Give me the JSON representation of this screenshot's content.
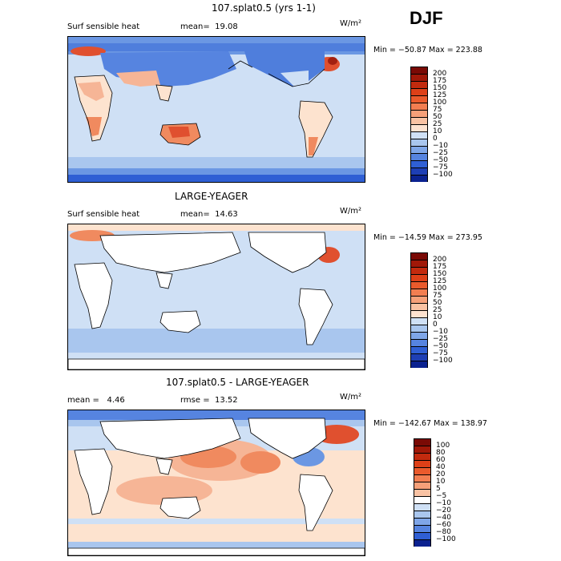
{
  "season": "DJF",
  "colors": {
    "land_white": "#ffffff",
    "light_blue": "#cfe0f5",
    "mid_blue": "#a9c6ee",
    "blue": "#6b97e3",
    "deep_blue": "#2f5fd4",
    "peach": "#fde3cf",
    "salmon": "#f6b596",
    "orange": "#f08a5f",
    "red": "#e0502f",
    "dark_red": "#a32010"
  },
  "panels": [
    {
      "title": "107.splat0.5 (yrs 1-1)",
      "left_label": "Surf sensible heat",
      "stat_label": "mean=",
      "stat_value": "19.08",
      "units": "W/m²",
      "minmax": "Min = −50.87 Max = 223.88"
    },
    {
      "title": "LARGE-YEAGER",
      "left_label": "Surf sensible heat",
      "stat_label": "mean=",
      "stat_value": "14.63",
      "units": "W/m²",
      "minmax": "Min = −14.59 Max = 273.95"
    },
    {
      "title": "107.splat0.5 - LARGE-YEAGER",
      "left_label": "mean =",
      "left_value": "4.46",
      "stat_label": "rmse =",
      "stat_value": "13.52",
      "units": "W/m²",
      "minmax": "Min = −142.67 Max = 138.97"
    }
  ],
  "chart_data": [
    {
      "type": "heatmap",
      "title": "107.splat0.5 (yrs 1-1)",
      "variable": "Surf sensible heat",
      "units": "W/m2",
      "mean": 19.08,
      "min": -50.87,
      "max": 223.88,
      "colorbar_levels": [
        "200",
        "175",
        "150",
        "125",
        "100",
        "75",
        "50",
        "25",
        "10",
        "0",
        "−10",
        "−25",
        "−50",
        "−75",
        "−100"
      ],
      "colorbar_colors": [
        "#7a0a05",
        "#a01808",
        "#c22a0e",
        "#dd4018",
        "#ea5a2c",
        "#f27e51",
        "#f6a079",
        "#f9c2a3",
        "#fde2d0",
        "#cfe0f5",
        "#a9c6ee",
        "#7fa6e8",
        "#5684e0",
        "#2f5fd4",
        "#1e3fb5",
        "#0b2290"
      ]
    },
    {
      "type": "heatmap",
      "title": "LARGE-YEAGER",
      "variable": "Surf sensible heat",
      "units": "W/m2",
      "mean": 14.63,
      "min": -14.59,
      "max": 273.95,
      "colorbar_levels": [
        "200",
        "175",
        "150",
        "125",
        "100",
        "75",
        "50",
        "25",
        "10",
        "0",
        "−10",
        "−25",
        "−50",
        "−75",
        "−100"
      ],
      "colorbar_colors": [
        "#7a0a05",
        "#a01808",
        "#c22a0e",
        "#dd4018",
        "#ea5a2c",
        "#f27e51",
        "#f6a079",
        "#f9c2a3",
        "#fde2d0",
        "#cfe0f5",
        "#a9c6ee",
        "#7fa6e8",
        "#5684e0",
        "#2f5fd4",
        "#1e3fb5",
        "#0b2290"
      ]
    },
    {
      "type": "heatmap",
      "title": "107.splat0.5 - LARGE-YEAGER",
      "units": "W/m2",
      "mean": 4.46,
      "rmse": 13.52,
      "min": -142.67,
      "max": 138.97,
      "colorbar_levels": [
        "100",
        "80",
        "60",
        "40",
        "20",
        "10",
        "5",
        "−5",
        "−10",
        "−20",
        "−40",
        "−60",
        "−80",
        "−100"
      ],
      "colorbar_colors": [
        "#7a0a05",
        "#a01808",
        "#c22a0e",
        "#dd4018",
        "#ea5a2c",
        "#f27e51",
        "#f6a079",
        "#f9c2a3",
        "#ffffff",
        "#cfe0f5",
        "#a9c6ee",
        "#7fa6e8",
        "#5684e0",
        "#2f5fd4",
        "#0b2290"
      ]
    }
  ]
}
